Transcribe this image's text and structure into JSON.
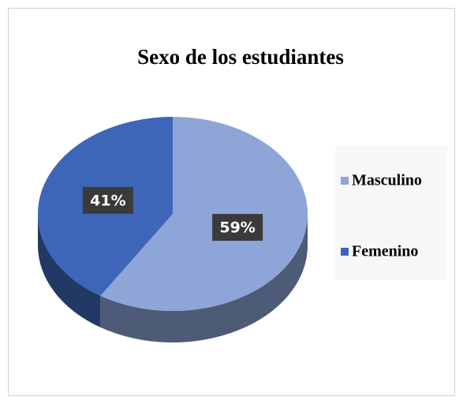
{
  "chart_data": {
    "type": "pie",
    "title": "Sexo de los estudiantes",
    "categories": [
      "Masculino",
      "Femenino"
    ],
    "values": [
      59,
      41
    ],
    "value_labels": [
      "59%",
      "41%"
    ],
    "colors": [
      "#8ea5d8",
      "#3d66b8"
    ],
    "legend": "right"
  }
}
